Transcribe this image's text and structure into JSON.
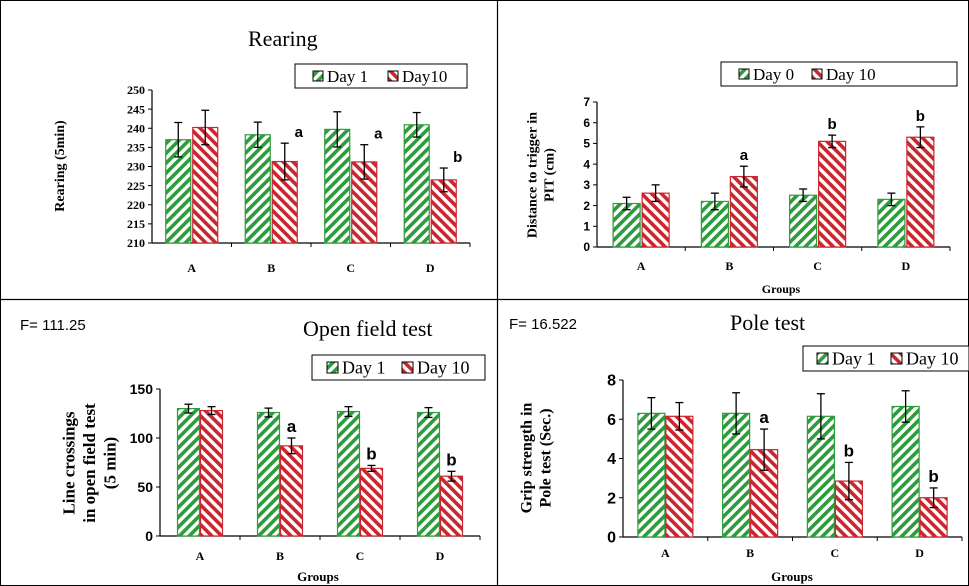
{
  "colors": {
    "green": "#2e9b3c",
    "red": "#c9262f",
    "axis": "#000000",
    "error": "#000000",
    "border": "#000000"
  },
  "chart_data": [
    {
      "type": "bar",
      "title": "Rearing",
      "stat": "",
      "xlabel": "",
      "ylabel": "Rearing (5min)",
      "categories": [
        "A",
        "B",
        "C",
        "D"
      ],
      "series": [
        {
          "name": "Day 1",
          "values": [
            237,
            238.3,
            239.7,
            240.9
          ],
          "errors": [
            4.5,
            3.3,
            4.6,
            3.2
          ],
          "letters": [
            "",
            "",
            "",
            ""
          ]
        },
        {
          "name": "Day10",
          "values": [
            240.2,
            231.3,
            231.2,
            226.5
          ],
          "errors": [
            4.5,
            4.8,
            4.5,
            3.1
          ],
          "letters": [
            "",
            "a",
            "a",
            "b"
          ]
        }
      ],
      "ylim": [
        210,
        250
      ],
      "yticks": [
        210,
        215,
        220,
        225,
        230,
        235,
        240,
        245,
        250
      ],
      "legend": "top-right"
    },
    {
      "type": "bar",
      "title": "",
      "stat": "",
      "xlabel": "Groups",
      "ylabel": "Distance to trigger in PIT (cm)",
      "ylabel_lines": [
        "Distance to trigger in",
        "PIT (cm)"
      ],
      "categories": [
        "A",
        "B",
        "C",
        "D"
      ],
      "series": [
        {
          "name": "Day 0",
          "values": [
            2.1,
            2.2,
            2.5,
            2.3
          ],
          "errors": [
            0.3,
            0.4,
            0.3,
            0.3
          ],
          "letters": [
            "",
            "",
            "",
            ""
          ]
        },
        {
          "name": "Day 10",
          "values": [
            2.6,
            3.4,
            5.1,
            5.3
          ],
          "errors": [
            0.4,
            0.5,
            0.3,
            0.5
          ],
          "letters": [
            "",
            "a",
            "b",
            "b"
          ]
        }
      ],
      "ylim": [
        0,
        7
      ],
      "yticks": [
        0,
        1,
        2,
        3,
        4,
        5,
        6,
        7
      ],
      "legend": "top-right"
    },
    {
      "type": "bar",
      "title": "Open field test",
      "stat": "F= 111.25",
      "xlabel": "Groups",
      "ylabel": "Line crossings in open field test (5 min)",
      "ylabel_lines": [
        "Line crossings",
        "in open field test",
        "(5 min)"
      ],
      "categories": [
        "A",
        "B",
        "C",
        "D"
      ],
      "series": [
        {
          "name": "Day 1",
          "values": [
            130,
            126,
            127,
            126
          ],
          "errors": [
            4.5,
            4.5,
            5,
            5
          ],
          "letters": [
            "",
            "",
            "",
            ""
          ]
        },
        {
          "name": "Day 10",
          "values": [
            128,
            92,
            69,
            61
          ],
          "errors": [
            4,
            8,
            3,
            5
          ],
          "letters": [
            "",
            "a",
            "b",
            "b"
          ]
        }
      ],
      "ylim": [
        0,
        150
      ],
      "yticks": [
        0,
        50,
        100,
        150
      ],
      "legend": "top-right"
    },
    {
      "type": "bar",
      "title": "Pole test",
      "stat": "F= 16.522",
      "xlabel": "Groups",
      "ylabel": "Grip strength in Pole test (Sec.)",
      "ylabel_lines": [
        "Grip strength in",
        "Pole test (Sec.)"
      ],
      "categories": [
        "A",
        "B",
        "C",
        "D"
      ],
      "series": [
        {
          "name": "Day 1",
          "values": [
            6.3,
            6.3,
            6.15,
            6.65
          ],
          "errors": [
            0.8,
            1.05,
            1.15,
            0.8
          ],
          "letters": [
            "",
            "",
            "",
            ""
          ]
        },
        {
          "name": "Day 10",
          "values": [
            6.15,
            4.45,
            2.85,
            2.0
          ],
          "errors": [
            0.7,
            1.05,
            0.95,
            0.5
          ],
          "letters": [
            "",
            "a",
            "b",
            "b"
          ]
        }
      ],
      "ylim": [
        0,
        8
      ],
      "yticks": [
        0,
        2,
        4,
        6,
        8
      ],
      "legend": "top-right"
    }
  ]
}
